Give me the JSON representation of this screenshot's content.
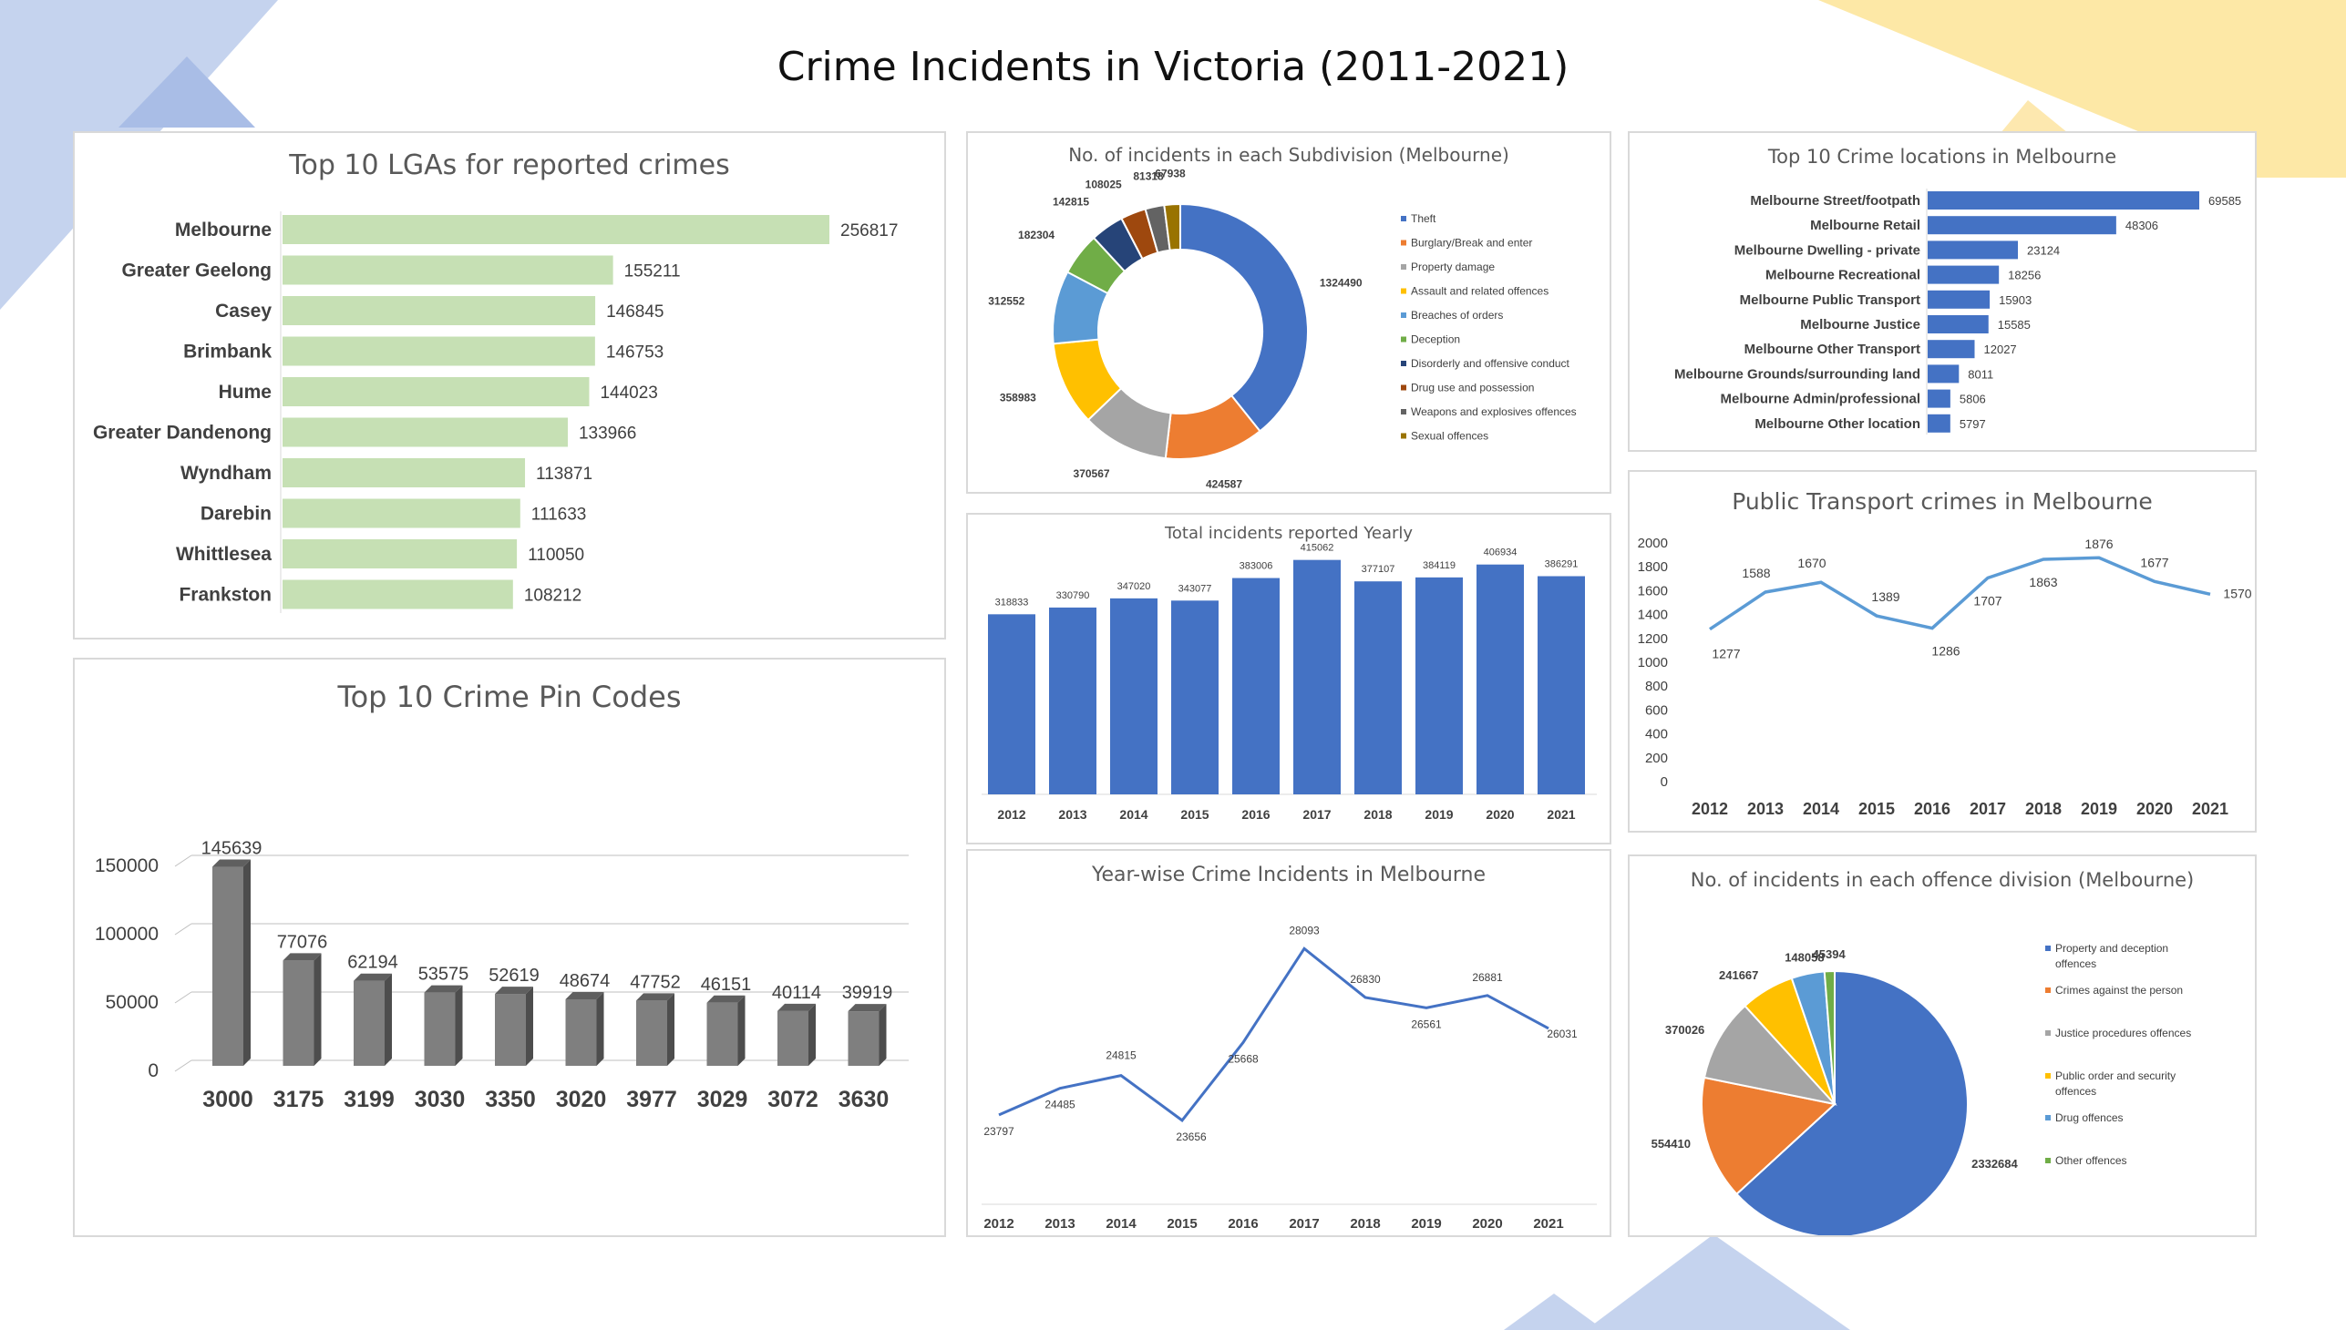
{
  "dashboard": {
    "title": "Crime Incidents in Victoria (2011-2021)",
    "colors": {
      "bg_blue": "#c5d3ee",
      "bg_blue_dark": "#a9bde6",
      "bg_yellow": "#fde8a6",
      "bg_yellow_dark": "#fbd979"
    }
  },
  "chart_data": [
    {
      "id": "lga",
      "type": "bar",
      "orientation": "horizontal",
      "title": "Top 10 LGAs for reported crimes",
      "categories": [
        "Melbourne",
        "Greater Geelong",
        "Casey",
        "Brimbank",
        "Hume",
        "Greater Dandenong",
        "Wyndham",
        "Darebin",
        "Whittlesea",
        "Frankston"
      ],
      "values": [
        256817,
        155211,
        146845,
        146753,
        144023,
        133966,
        113871,
        111633,
        110050,
        108212
      ],
      "color": "#c6e0b4",
      "data_labels": true
    },
    {
      "id": "pincodes",
      "type": "bar",
      "title": "Top 10 Crime Pin Codes",
      "categories": [
        "3000",
        "3175",
        "3199",
        "3030",
        "3350",
        "3020",
        "3977",
        "3029",
        "3072",
        "3630"
      ],
      "values": [
        145639,
        77076,
        62194,
        53575,
        52619,
        48674,
        47752,
        46151,
        40114,
        39919
      ],
      "yticks": [
        "0",
        "50000",
        "100000",
        "150000"
      ],
      "ylim": [
        0,
        150000
      ],
      "color": "#7f7f7f",
      "style": "3d-column",
      "grid": true,
      "data_labels": true
    },
    {
      "id": "subdivision",
      "type": "pie",
      "variant": "doughnut",
      "title": "No. of incidents in each Subdivision (Melbourne)",
      "labels": [
        "Theft",
        "Burglary/Break and enter",
        "Property damage",
        "Assault and related offences",
        "Breaches of orders",
        "Deception",
        "Disorderly and offensive conduct",
        "Drug use and possession",
        "Weapons and explosives offences",
        "Sexual offences"
      ],
      "values": [
        1324490,
        424587,
        370567,
        358983,
        312552,
        182304,
        142815,
        108025,
        81318,
        67938
      ],
      "colors": [
        "#4472c4",
        "#ed7d31",
        "#a5a5a5",
        "#ffc000",
        "#5b9bd5",
        "#70ad47",
        "#264478",
        "#9e480e",
        "#636363",
        "#997300"
      ],
      "legend": "right"
    },
    {
      "id": "yearly",
      "type": "bar",
      "title": "Total incidents reported Yearly",
      "categories": [
        "2012",
        "2013",
        "2014",
        "2015",
        "2016",
        "2017",
        "2018",
        "2019",
        "2020",
        "2021"
      ],
      "values": [
        318833,
        330790,
        347020,
        343077,
        383006,
        415062,
        377107,
        384119,
        406934,
        386291
      ],
      "color": "#4472c4",
      "data_labels": true
    },
    {
      "id": "yearwise",
      "type": "line",
      "title": "Year-wise Crime Incidents in Melbourne",
      "categories": [
        "2012",
        "2013",
        "2014",
        "2015",
        "2016",
        "2017",
        "2018",
        "2019",
        "2020",
        "2021"
      ],
      "values": [
        23797,
        24485,
        24815,
        23656,
        25668,
        28093,
        26830,
        26561,
        26881,
        26031
      ],
      "color": "#4472c4",
      "data_labels": true
    },
    {
      "id": "locations",
      "type": "bar",
      "orientation": "horizontal",
      "title": "Top 10 Crime locations in Melbourne",
      "categories": [
        "Melbourne Street/footpath",
        "Melbourne Retail",
        "Melbourne Dwelling - private",
        "Melbourne Recreational",
        "Melbourne Public Transport",
        "Melbourne Justice",
        "Melbourne Other Transport",
        "Melbourne Grounds/surrounding land",
        "Melbourne Admin/professional",
        "Melbourne Other location"
      ],
      "values": [
        69585,
        48306,
        23124,
        18256,
        15903,
        15585,
        12027,
        8011,
        5806,
        5797
      ],
      "color": "#4472c4",
      "data_labels": true
    },
    {
      "id": "transport",
      "type": "line",
      "title": "Public Transport crimes in Melbourne",
      "categories": [
        "2012",
        "2013",
        "2014",
        "2015",
        "2016",
        "2017",
        "2018",
        "2019",
        "2020",
        "2021"
      ],
      "values": [
        1277,
        1588,
        1670,
        1389,
        1286,
        1707,
        1863,
        1876,
        1677,
        1570
      ],
      "yticks": [
        "0",
        "200",
        "400",
        "600",
        "800",
        "1000",
        "1200",
        "1400",
        "1600",
        "1800",
        "2000"
      ],
      "ylim": [
        0,
        2000
      ],
      "color": "#5b9bd5",
      "data_labels": true
    },
    {
      "id": "division",
      "type": "pie",
      "title": "No. of incidents in each offence division (Melbourne)",
      "labels": [
        "Property and deception offences",
        "Crimes against the person",
        "Justice procedures offences",
        "Public order and security offences",
        "Drug offences",
        "Other offences"
      ],
      "values": [
        2332684,
        554410,
        370026,
        241667,
        148058,
        45394
      ],
      "colors": [
        "#4472c4",
        "#ed7d31",
        "#a5a5a5",
        "#ffc000",
        "#5b9bd5",
        "#70ad47"
      ],
      "legend": "right"
    }
  ]
}
